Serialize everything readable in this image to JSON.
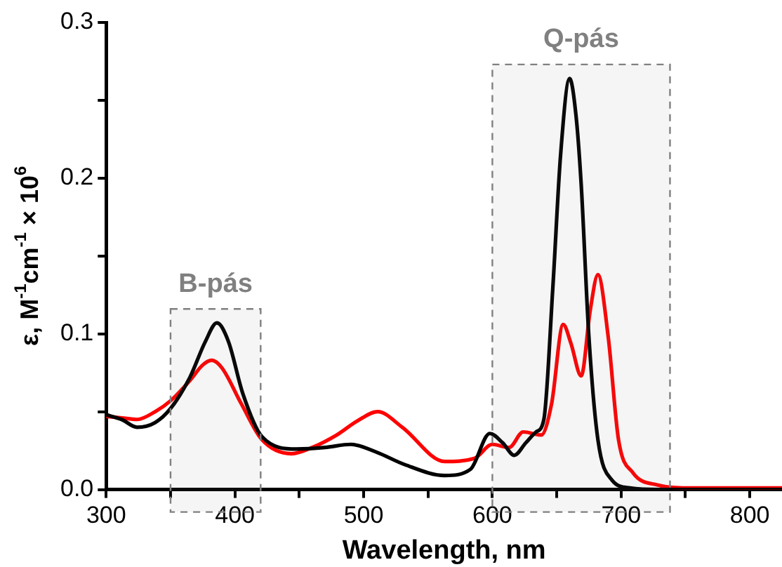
{
  "chart_data": {
    "type": "line",
    "xlabel": "Wavelength, nm",
    "ylabel": "ε, M$^{-1}$cm$^{-1}$ × 10$^{6}$",
    "xlim": [
      300,
      825
    ],
    "xticks": [
      300,
      {
        "value": 350,
        "label": null
      },
      400,
      {
        "value": 450,
        "label": null
      },
      500,
      {
        "value": 550,
        "label": null
      },
      600,
      {
        "value": 650,
        "label": null
      },
      700,
      {
        "value": 750,
        "label": null
      },
      800
    ],
    "ylim": [
      0,
      0.3
    ],
    "yticks": [
      {
        "value": 0,
        "label": "0.0"
      },
      {
        "value": 0.05,
        "label": null
      },
      0.1,
      {
        "value": 0.15,
        "label": null
      },
      0.2,
      {
        "value": 0.25,
        "label": null
      },
      0.3
    ],
    "grid": false,
    "legend": false,
    "marker": "none",
    "line_style": "solid",
    "bands": [
      {
        "axis": "x",
        "from": 350,
        "to": 420,
        "label": "B-pás",
        "color": "#808080"
      },
      {
        "axis": "x",
        "from": 600,
        "to": 738,
        "label": "Q-pás",
        "color": "#808080"
      }
    ],
    "series": [
      {
        "color": "#000000",
        "x": [
          300,
          312,
          324,
          338,
          350,
          365,
          377,
          386,
          395,
          406,
          421,
          448,
          470,
          490,
          510,
          532,
          563,
          583,
          598,
          608,
          617,
          626,
          634,
          640,
          647,
          653,
          660,
          665,
          669,
          675,
          682,
          693,
          707,
          730,
          780,
          825
        ],
        "values": [
          0.048,
          0.045,
          0.04,
          0.043,
          0.052,
          0.072,
          0.095,
          0.107,
          0.095,
          0.062,
          0.034,
          0.026,
          0.027,
          0.029,
          0.024,
          0.016,
          0.009,
          0.013,
          0.036,
          0.03,
          0.022,
          0.03,
          0.037,
          0.045,
          0.13,
          0.215,
          0.264,
          0.24,
          0.196,
          0.098,
          0.032,
          0.006,
          0.001,
          0,
          0,
          0
        ]
      },
      {
        "color": "#ff0000",
        "x": [
          300,
          312,
          324,
          338,
          350,
          365,
          375,
          382,
          390,
          405,
          421,
          444,
          460,
          479,
          495,
          511,
          530,
          563,
          586,
          600,
          613,
          624,
          638,
          646,
          655,
          661,
          669,
          676,
          682,
          690,
          698,
          709,
          728,
          756,
          800,
          825
        ],
        "values": [
          0.047,
          0.046,
          0.045,
          0.05,
          0.057,
          0.07,
          0.08,
          0.083,
          0.078,
          0.055,
          0.032,
          0.023,
          0.027,
          0.035,
          0.044,
          0.05,
          0.04,
          0.018,
          0.02,
          0.029,
          0.027,
          0.037,
          0.035,
          0.055,
          0.106,
          0.094,
          0.073,
          0.115,
          0.138,
          0.098,
          0.032,
          0.011,
          0.003,
          0.001,
          0.001,
          0.001
        ]
      }
    ]
  }
}
